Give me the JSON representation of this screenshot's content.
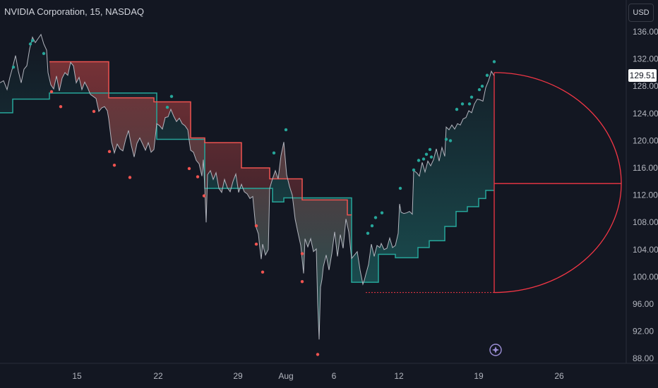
{
  "header": {
    "title": "NVIDIA Corporation, 15, NASDAQ"
  },
  "toolbar": {
    "currency": "USD"
  },
  "last_price": "129.51",
  "colors": {
    "background": "#131722",
    "bull": "#26a69a",
    "bear": "#ef5350",
    "price_line": "#b2b5be",
    "projection": "#f23645"
  },
  "chart_data": {
    "type": "line",
    "title": "NVIDIA Corporation, 15, NASDAQ",
    "xlabel": "",
    "ylabel": "",
    "ylim": [
      87,
      138
    ],
    "y_ticks": [
      "136.00",
      "132.00",
      "128.00",
      "124.00",
      "120.00",
      "116.00",
      "112.00",
      "108.00",
      "104.00",
      "100.00",
      "96.00",
      "92.00",
      "88.00"
    ],
    "x_ticks": [
      "15",
      "22",
      "29",
      "Aug",
      "6",
      "12",
      "19",
      "26"
    ],
    "legend": "none",
    "grid": false,
    "price": [
      [
        0,
        128.5
      ],
      [
        5,
        128.8
      ],
      [
        10,
        127.5
      ],
      [
        14,
        129.3
      ],
      [
        18,
        130.8
      ],
      [
        22,
        132.5
      ],
      [
        26,
        130.2
      ],
      [
        30,
        128.5
      ],
      [
        34,
        130.5
      ],
      [
        38,
        131.0
      ],
      [
        42,
        133.5
      ],
      [
        46,
        135.2
      ],
      [
        50,
        134.4
      ],
      [
        54,
        135.0
      ],
      [
        58,
        135.6
      ],
      [
        62,
        134.2
      ],
      [
        66,
        133.3
      ],
      [
        68,
        130.0
      ],
      [
        72,
        128.2
      ],
      [
        76,
        127.6
      ],
      [
        80,
        129.5
      ],
      [
        84,
        127.3
      ],
      [
        88,
        129.2
      ],
      [
        92,
        130.0
      ],
      [
        96,
        129.6
      ],
      [
        100,
        131.5
      ],
      [
        104,
        131.0
      ],
      [
        108,
        128.5
      ],
      [
        112,
        129.3
      ],
      [
        116,
        127.5
      ],
      [
        120,
        128.6
      ],
      [
        124,
        127.8
      ],
      [
        128,
        126.8
      ],
      [
        132,
        126.5
      ],
      [
        136,
        126.2
      ],
      [
        140,
        124.3
      ],
      [
        144,
        124.8
      ],
      [
        148,
        125.0
      ],
      [
        152,
        124.4
      ],
      [
        154,
        123.2
      ],
      [
        158,
        119.8
      ],
      [
        162,
        118.2
      ],
      [
        166,
        119.5
      ],
      [
        170,
        118.8
      ],
      [
        174,
        118.5
      ],
      [
        178,
        120.2
      ],
      [
        182,
        121.5
      ],
      [
        186,
        119.3
      ],
      [
        190,
        117.6
      ],
      [
        194,
        119.6
      ],
      [
        198,
        120.4
      ],
      [
        202,
        119.5
      ],
      [
        206,
        118.6
      ],
      [
        210,
        119.7
      ],
      [
        214,
        118.3
      ],
      [
        218,
        118.7
      ],
      [
        222,
        122.5
      ],
      [
        226,
        122.2
      ],
      [
        230,
        121.7
      ],
      [
        234,
        123.4
      ],
      [
        238,
        123.5
      ],
      [
        242,
        124.6
      ],
      [
        246,
        123.6
      ],
      [
        250,
        122.8
      ],
      [
        254,
        123.3
      ],
      [
        258,
        122.5
      ],
      [
        262,
        122.2
      ],
      [
        266,
        121.6
      ],
      [
        268,
        120.0
      ],
      [
        270,
        118.6
      ],
      [
        274,
        118.3
      ],
      [
        278,
        117.1
      ],
      [
        282,
        116.6
      ],
      [
        286,
        114.8
      ],
      [
        288,
        117.2
      ],
      [
        290,
        113.3
      ],
      [
        292,
        108.0
      ],
      [
        294,
        115.0
      ],
      [
        298,
        115.6
      ],
      [
        302,
        114.3
      ],
      [
        306,
        115.3
      ],
      [
        310,
        113.0
      ],
      [
        314,
        112.4
      ],
      [
        318,
        114.3
      ],
      [
        322,
        113.1
      ],
      [
        326,
        112.5
      ],
      [
        330,
        114.0
      ],
      [
        334,
        115.1
      ],
      [
        338,
        112.4
      ],
      [
        342,
        113.6
      ],
      [
        346,
        112.5
      ],
      [
        350,
        112.2
      ],
      [
        354,
        111.5
      ],
      [
        358,
        111.8
      ],
      [
        362,
        107.5
      ],
      [
        366,
        106.3
      ],
      [
        368,
        104.3
      ],
      [
        370,
        102.6
      ],
      [
        372,
        104.8
      ],
      [
        376,
        103.2
      ],
      [
        380,
        104.0
      ],
      [
        382,
        113.0
      ],
      [
        386,
        114.4
      ],
      [
        390,
        115.6
      ],
      [
        394,
        114.4
      ],
      [
        398,
        117.8
      ],
      [
        402,
        119.8
      ],
      [
        406,
        115.0
      ],
      [
        410,
        113.3
      ],
      [
        414,
        112.0
      ],
      [
        418,
        108.5
      ],
      [
        422,
        106.5
      ],
      [
        426,
        104.6
      ],
      [
        430,
        100.5
      ],
      [
        432,
        105.6
      ],
      [
        436,
        104.4
      ],
      [
        440,
        105.6
      ],
      [
        444,
        103.7
      ],
      [
        448,
        104.1
      ],
      [
        450,
        96.0
      ],
      [
        452,
        90.8
      ],
      [
        454,
        98.5
      ],
      [
        456,
        99.6
      ],
      [
        458,
        101.5
      ],
      [
        462,
        103.2
      ],
      [
        466,
        101.0
      ],
      [
        470,
        103.4
      ],
      [
        474,
        106.6
      ],
      [
        478,
        103.0
      ],
      [
        482,
        106.2
      ],
      [
        486,
        104.2
      ],
      [
        490,
        108.5
      ],
      [
        494,
        106.6
      ],
      [
        498,
        102.7
      ],
      [
        502,
        103.2
      ],
      [
        506,
        103.7
      ],
      [
        510,
        101.0
      ],
      [
        514,
        98.9
      ],
      [
        516,
        99.5
      ],
      [
        518,
        100.3
      ],
      [
        522,
        101.8
      ],
      [
        526,
        104.8
      ],
      [
        530,
        103.0
      ],
      [
        534,
        104.6
      ],
      [
        538,
        104.3
      ],
      [
        540,
        104.9
      ],
      [
        544,
        104.0
      ],
      [
        548,
        104.2
      ],
      [
        552,
        105.7
      ],
      [
        556,
        104.3
      ],
      [
        560,
        104.6
      ],
      [
        564,
        106.4
      ],
      [
        566,
        110.7
      ],
      [
        568,
        109.5
      ],
      [
        572,
        109.3
      ],
      [
        576,
        109.4
      ],
      [
        580,
        109.6
      ],
      [
        584,
        109.2
      ],
      [
        586,
        115.6
      ],
      [
        590,
        115.3
      ],
      [
        594,
        114.8
      ],
      [
        598,
        116.8
      ],
      [
        602,
        115.4
      ],
      [
        606,
        117.0
      ],
      [
        610,
        116.3
      ],
      [
        614,
        117.2
      ],
      [
        618,
        118.8
      ],
      [
        622,
        117.0
      ],
      [
        626,
        119.0
      ],
      [
        630,
        117.7
      ],
      [
        632,
        122.0
      ],
      [
        636,
        121.6
      ],
      [
        640,
        122.3
      ],
      [
        644,
        121.7
      ],
      [
        648,
        122.5
      ],
      [
        652,
        122.3
      ],
      [
        656,
        123.2
      ],
      [
        660,
        123.4
      ],
      [
        664,
        124.4
      ],
      [
        668,
        124.1
      ],
      [
        672,
        125.4
      ],
      [
        676,
        126.1
      ],
      [
        680,
        126.0
      ],
      [
        684,
        125.8
      ],
      [
        688,
        127.8
      ],
      [
        692,
        128.8
      ],
      [
        696,
        130.2
      ],
      [
        700,
        129.5
      ]
    ],
    "bull_band": [
      [
        0,
        124.1
      ],
      [
        18,
        124.1
      ],
      [
        18,
        126.1
      ],
      [
        70,
        126.1
      ],
      [
        70,
        127.0
      ],
      [
        74,
        127.0
      ],
      [
        222,
        127.0
      ],
      [
        222,
        120.2
      ],
      [
        268,
        120.2
      ],
      [
        270,
        120.2
      ],
      [
        290,
        120.2
      ],
      [
        290,
        113.0
      ],
      [
        386,
        113.0
      ],
      [
        386,
        111.0
      ],
      [
        402,
        111.0
      ],
      [
        402,
        111.6
      ],
      [
        414,
        111.6
      ],
      [
        428,
        111.6
      ],
      [
        498,
        111.6
      ],
      [
        498,
        99.2
      ],
      [
        536,
        99.2
      ],
      [
        536,
        103.3
      ],
      [
        560,
        103.3
      ],
      [
        560,
        102.8
      ],
      [
        592,
        102.8
      ],
      [
        592,
        104.3
      ],
      [
        608,
        104.3
      ],
      [
        608,
        105.3
      ],
      [
        630,
        105.3
      ],
      [
        630,
        107.4
      ],
      [
        646,
        107.4
      ],
      [
        646,
        109.6
      ],
      [
        662,
        109.6
      ],
      [
        662,
        110.3
      ],
      [
        678,
        110.3
      ],
      [
        678,
        111.5
      ],
      [
        688,
        111.5
      ],
      [
        688,
        112.7
      ],
      [
        700,
        112.7
      ]
    ],
    "bear_band": [
      [
        70,
        131.6
      ],
      [
        154,
        131.6
      ],
      [
        154,
        126.3
      ],
      [
        218,
        126.3
      ],
      [
        218,
        125.7
      ],
      [
        270,
        125.7
      ],
      [
        270,
        120.4
      ],
      [
        290,
        120.4
      ],
      [
        290,
        119.7
      ],
      [
        342,
        119.7
      ],
      [
        342,
        116.0
      ],
      [
        382,
        116.0
      ],
      [
        382,
        114.4
      ],
      [
        428,
        114.4
      ],
      [
        428,
        111.3
      ],
      [
        492,
        111.3
      ],
      [
        492,
        109.1
      ],
      [
        498,
        109.1
      ]
    ],
    "bull_dots": [
      [
        19,
        130.8
      ],
      [
        43,
        134.2
      ],
      [
        46,
        134.7
      ],
      [
        62,
        132.8
      ],
      [
        237,
        124.9
      ],
      [
        243,
        126.5
      ],
      [
        405,
        121.6
      ],
      [
        388,
        118.2
      ],
      [
        521,
        106.4
      ],
      [
        527,
        107.5
      ],
      [
        532,
        108.7
      ],
      [
        541,
        109.4
      ],
      [
        567,
        113.0
      ],
      [
        586,
        115.7
      ],
      [
        593,
        117.1
      ],
      [
        600,
        117.3
      ],
      [
        604,
        118.0
      ],
      [
        609,
        118.7
      ],
      [
        611,
        117.6
      ],
      [
        632,
        120.2
      ],
      [
        638,
        120.0
      ],
      [
        647,
        124.6
      ],
      [
        655,
        125.4
      ],
      [
        665,
        125.4
      ],
      [
        668,
        126.4
      ],
      [
        679,
        127.5
      ],
      [
        683,
        128.0
      ],
      [
        690,
        129.6
      ],
      [
        700,
        131.6
      ]
    ],
    "bear_dots": [
      [
        73,
        127.2
      ],
      [
        86,
        125.0
      ],
      [
        133,
        124.3
      ],
      [
        155,
        118.4
      ],
      [
        162,
        116.4
      ],
      [
        184,
        114.6
      ],
      [
        268,
        115.9
      ],
      [
        280,
        114.7
      ],
      [
        289,
        111.9
      ],
      [
        363,
        107.5
      ],
      [
        363,
        104.8
      ],
      [
        372,
        100.7
      ],
      [
        428,
        99.3
      ],
      [
        450,
        88.6
      ],
      [
        428,
        103.4
      ]
    ],
    "projection": {
      "level_high": 130.0,
      "level_mid": 113.7,
      "level_low": 97.7,
      "start_index": 700,
      "end_index": 880,
      "dashed_from_index": 518
    }
  }
}
